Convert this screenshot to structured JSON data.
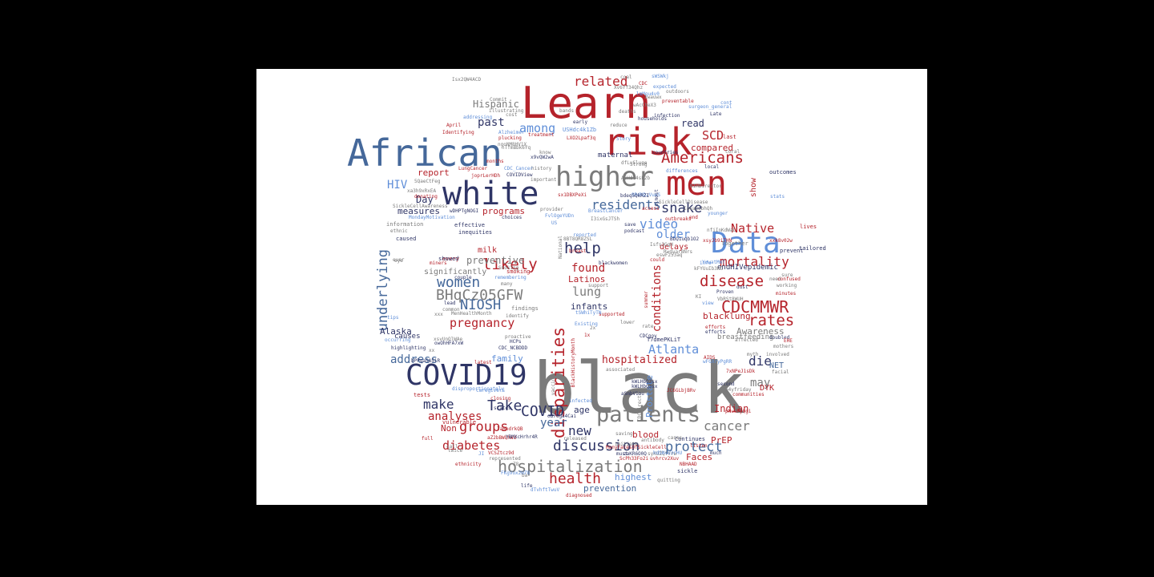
{
  "palette": {
    "background": "#000000",
    "canvas": "#ffffff",
    "red": "#b5232b",
    "steel_blue": "#45689a",
    "navy": "#2f3566",
    "light_blue": "#5f8ed8",
    "gray": "#7b7b7b"
  },
  "words": [
    {
      "text": "black",
      "color": "gray"
    },
    {
      "text": "Learn",
      "color": "red"
    },
    {
      "text": "African",
      "color": "steel_blue"
    },
    {
      "text": "risk",
      "color": "red"
    },
    {
      "text": "men",
      "color": "red"
    },
    {
      "text": "white",
      "color": "navy"
    },
    {
      "text": "higher",
      "color": "gray"
    },
    {
      "text": "COVID19",
      "color": "navy"
    },
    {
      "text": "Data",
      "color": "light_blue"
    },
    {
      "text": "patients",
      "color": "gray"
    },
    {
      "text": "hospitalization",
      "color": "gray"
    },
    {
      "text": "CDCMMWR",
      "color": "red"
    },
    {
      "text": "disparities",
      "color": "red"
    },
    {
      "text": "Americans",
      "color": "red"
    },
    {
      "text": "women",
      "color": "steel_blue"
    },
    {
      "text": "discussion",
      "color": "navy"
    },
    {
      "text": "disease",
      "color": "red"
    },
    {
      "text": "BHqCz05GFW",
      "color": "gray"
    },
    {
      "text": "mortality",
      "color": "red"
    },
    {
      "text": "rates",
      "color": "red"
    },
    {
      "text": "related",
      "color": "red"
    },
    {
      "text": "help",
      "color": "navy"
    },
    {
      "text": "protect",
      "color": "steel_blue"
    },
    {
      "text": "health",
      "color": "red"
    },
    {
      "text": "Atlanta",
      "color": "light_blue"
    },
    {
      "text": "likely",
      "color": "red"
    },
    {
      "text": "residents",
      "color": "steel_blue"
    },
    {
      "text": "pregnancy",
      "color": "red"
    },
    {
      "text": "groups",
      "color": "red"
    },
    {
      "text": "COVID",
      "color": "navy"
    },
    {
      "text": "snake",
      "color": "navy"
    },
    {
      "text": "cancer",
      "color": "gray"
    },
    {
      "text": "Native",
      "color": "red"
    },
    {
      "text": "NIOSH",
      "color": "steel_blue"
    },
    {
      "text": "underlying",
      "color": "steel_blue"
    },
    {
      "text": "conditions",
      "color": "red"
    },
    {
      "text": "Take",
      "color": "navy"
    },
    {
      "text": "make",
      "color": "navy"
    },
    {
      "text": "diabetes",
      "color": "red"
    },
    {
      "text": "new",
      "color": "navy"
    },
    {
      "text": "video",
      "color": "light_blue"
    },
    {
      "text": "die",
      "color": "navy"
    },
    {
      "text": "year",
      "color": "steel_blue"
    },
    {
      "text": "SCD",
      "color": "red"
    },
    {
      "text": "address",
      "color": "steel_blue"
    },
    {
      "text": "among",
      "color": "light_blue"
    },
    {
      "text": "HIV",
      "color": "light_blue"
    },
    {
      "text": "lung",
      "color": "gray"
    },
    {
      "text": "found",
      "color": "red"
    },
    {
      "text": "analyses",
      "color": "red"
    },
    {
      "text": "older",
      "color": "light_blue"
    },
    {
      "text": "past",
      "color": "navy"
    },
    {
      "text": "may",
      "color": "gray"
    },
    {
      "text": "Hispanic",
      "color": "gray"
    },
    {
      "text": "hospitalized",
      "color": "red"
    },
    {
      "text": "compared",
      "color": "red"
    },
    {
      "text": "read",
      "color": "navy"
    },
    {
      "text": "preventive",
      "color": "gray"
    },
    {
      "text": "report",
      "color": "red"
    },
    {
      "text": "measures",
      "color": "navy"
    },
    {
      "text": "Prostate",
      "color": "light_blue"
    },
    {
      "text": "highest",
      "color": "light_blue"
    },
    {
      "text": "prevention",
      "color": "steel_blue"
    },
    {
      "text": "programs",
      "color": "red"
    },
    {
      "text": "family",
      "color": "light_blue"
    },
    {
      "text": "Indian",
      "color": "red"
    },
    {
      "text": "Alaska",
      "color": "navy"
    },
    {
      "text": "blood",
      "color": "red"
    },
    {
      "text": "Awareness",
      "color": "gray"
    },
    {
      "text": "blacklung",
      "color": "red"
    },
    {
      "text": "breastfeeding",
      "color": "gray"
    },
    {
      "text": "endHIVepidemic",
      "color": "navy"
    },
    {
      "text": "show",
      "color": "red"
    },
    {
      "text": "Day",
      "color": "navy"
    },
    {
      "text": "age",
      "color": "navy"
    },
    {
      "text": "Latinos",
      "color": "red"
    },
    {
      "text": "infants",
      "color": "navy"
    },
    {
      "text": "significantly",
      "color": "gray"
    },
    {
      "text": "milk",
      "color": "red"
    },
    {
      "text": "delays",
      "color": "red"
    },
    {
      "text": "Faces",
      "color": "red"
    },
    {
      "text": "Non",
      "color": "red"
    },
    {
      "text": "PrEP",
      "color": "red"
    },
    {
      "text": "NET",
      "color": "steel_blue"
    },
    {
      "text": "DYK",
      "color": "red"
    },
    {
      "text": "maternal",
      "color": "navy"
    },
    {
      "text": "effective",
      "color": "navy"
    },
    {
      "text": "inequities",
      "color": "navy"
    },
    {
      "text": "every",
      "color": "red"
    },
    {
      "text": "showed",
      "color": "navy"
    },
    {
      "text": "smoking",
      "color": "red"
    },
    {
      "text": "findings",
      "color": "gray"
    },
    {
      "text": "tailored",
      "color": "navy"
    },
    {
      "text": "prevent",
      "color": "navy"
    },
    {
      "text": "outcomes",
      "color": "navy"
    },
    {
      "text": "Together",
      "color": "gray"
    },
    {
      "text": "information",
      "color": "gray"
    },
    {
      "text": "caused",
      "color": "navy"
    },
    {
      "text": "ethnic",
      "color": "gray"
    },
    {
      "text": "lives",
      "color": "red"
    },
    {
      "text": "vulnerable",
      "color": "red"
    },
    {
      "text": "tests",
      "color": "red"
    },
    {
      "text": "causes",
      "color": "navy"
    },
    {
      "text": "diagnosed",
      "color": "red"
    },
    {
      "text": "represented",
      "color": "gray"
    },
    {
      "text": "ethnicity",
      "color": "red"
    },
    {
      "text": "full",
      "color": "red"
    },
    {
      "text": "quitting",
      "color": "gray"
    },
    {
      "text": "sickle",
      "color": "navy"
    },
    {
      "text": "listen",
      "color": "red"
    },
    {
      "text": "NBHAAD",
      "color": "red"
    },
    {
      "text": "Continues",
      "color": "navy"
    },
    {
      "text": "communities",
      "color": "red"
    },
    {
      "text": "second",
      "color": "navy"
    },
    {
      "text": "facial",
      "color": "gray"
    },
    {
      "text": "involved",
      "color": "gray"
    },
    {
      "text": "mothers",
      "color": "gray"
    },
    {
      "text": "doubled",
      "color": "navy"
    },
    {
      "text": "affected",
      "color": "gray"
    },
    {
      "text": "efforts",
      "color": "red"
    },
    {
      "text": "Proven",
      "color": "navy"
    },
    {
      "text": "working",
      "color": "gray"
    },
    {
      "text": "minutes",
      "color": "red"
    },
    {
      "text": "April",
      "color": "red"
    },
    {
      "text": "Identifying",
      "color": "red"
    },
    {
      "text": "treatment",
      "color": "red"
    },
    {
      "text": "Alzheimer",
      "color": "light_blue"
    },
    {
      "text": "early",
      "color": "navy"
    },
    {
      "text": "deaths",
      "color": "gray"
    },
    {
      "text": "reduce",
      "color": "gray"
    },
    {
      "text": "infection",
      "color": "navy"
    },
    {
      "text": "preventable",
      "color": "red"
    },
    {
      "text": "last",
      "color": "red"
    },
    {
      "text": "local",
      "color": "navy"
    },
    {
      "text": "countries",
      "color": "navy"
    },
    {
      "text": "differences",
      "color": "light_blue"
    },
    {
      "text": "Late",
      "color": "navy"
    },
    {
      "text": "coral",
      "color": "gray"
    },
    {
      "text": "history",
      "color": "gray"
    },
    {
      "text": "important",
      "color": "gray"
    },
    {
      "text": "LungCancer",
      "color": "red"
    },
    {
      "text": "BreastCancer",
      "color": "light_blue"
    },
    {
      "text": "outbreaks",
      "color": "red"
    },
    {
      "text": "Existing",
      "color": "light_blue"
    },
    {
      "text": "infected",
      "color": "light_blue"
    },
    {
      "text": "associated",
      "color": "gray"
    },
    {
      "text": "released",
      "color": "gray"
    },
    {
      "text": "must",
      "color": "navy"
    },
    {
      "text": "initiate",
      "color": "gray"
    },
    {
      "text": "saving",
      "color": "gray"
    },
    {
      "text": "could",
      "color": "red"
    },
    {
      "text": "much",
      "color": "navy"
    },
    {
      "text": "AIDS",
      "color": "red"
    },
    {
      "text": "need",
      "color": "gray"
    },
    {
      "text": "lead",
      "color": "navy"
    },
    {
      "text": "common",
      "color": "gray"
    },
    {
      "text": "identify",
      "color": "gray"
    },
    {
      "text": "many",
      "color": "gray"
    },
    {
      "text": "couple",
      "color": "navy"
    },
    {
      "text": "remembering",
      "color": "light_blue"
    },
    {
      "text": "donating",
      "color": "red"
    },
    {
      "text": "addressing",
      "color": "light_blue"
    },
    {
      "text": "cost",
      "color": "gray"
    },
    {
      "text": "plucking",
      "color": "red"
    },
    {
      "text": "MondayMotivation",
      "color": "light_blue"
    },
    {
      "text": "SickleCellAwareness",
      "color": "gray"
    },
    {
      "text": "highlighting",
      "color": "navy"
    },
    {
      "text": "proactive",
      "color": "gray"
    },
    {
      "text": "CDC_NCBDDD",
      "color": "navy"
    },
    {
      "text": "latest",
      "color": "red"
    },
    {
      "text": "disproportionately",
      "color": "light_blue"
    },
    {
      "text": "caregivers",
      "color": "light_blue"
    },
    {
      "text": "states",
      "color": "navy"
    },
    {
      "text": "life",
      "color": "navy"
    },
    {
      "text": "call",
      "color": "gray"
    },
    {
      "text": "supported",
      "color": "red"
    },
    {
      "text": "reported",
      "color": "light_blue"
    },
    {
      "text": "National",
      "color": "gray"
    },
    {
      "text": "Story",
      "color": "light_blue"
    },
    {
      "text": "younger",
      "color": "light_blue"
    },
    {
      "text": "stats",
      "color": "light_blue"
    },
    {
      "text": "cont",
      "color": "light_blue"
    },
    {
      "text": "outdoors",
      "color": "gray"
    },
    {
      "text": "expected",
      "color": "light_blue"
    },
    {
      "text": "surgeon_general",
      "color": "light_blue"
    },
    {
      "text": "coal",
      "color": "gray"
    },
    {
      "text": "CDC",
      "color": "red"
    },
    {
      "text": "households",
      "color": "navy"
    },
    {
      "text": "Commit",
      "color": "gray"
    },
    {
      "text": "illustrating",
      "color": "gray"
    },
    {
      "text": "MenHealthMonth",
      "color": "gray"
    },
    {
      "text": "BlackHistoryMonth",
      "color": "red"
    },
    {
      "text": "blackwomen",
      "color": "navy"
    },
    {
      "text": "provider",
      "color": "gray"
    },
    {
      "text": "choices",
      "color": "navy"
    },
    {
      "text": "CDC_Cancer",
      "color": "light_blue"
    },
    {
      "text": "COVIDView",
      "color": "navy"
    },
    {
      "text": "ManyFacesOfSickleCell",
      "color": "red"
    },
    {
      "text": "CDCDirector",
      "color": "gray"
    },
    {
      "text": "Smoking",
      "color": "gray"
    },
    {
      "text": "miners",
      "color": "red"
    },
    {
      "text": "vaccine",
      "color": "gray"
    },
    {
      "text": "xx",
      "color": "gray"
    },
    {
      "text": "xxx",
      "color": "gray"
    },
    {
      "text": "eye",
      "color": "gray"
    },
    {
      "text": "USHdc4k1Zb",
      "color": "light_blue"
    },
    {
      "text": "LXO2Lpaf3q",
      "color": "red"
    },
    {
      "text": "sx1DBXPeXi",
      "color": "red"
    },
    {
      "text": "9RdNDzVueS",
      "color": "light_blue"
    },
    {
      "text": "FvlOgeYUDn",
      "color": "light_blue"
    },
    {
      "text": "wDHPTgNOGI",
      "color": "navy"
    },
    {
      "text": "5QaeCtFeg",
      "color": "gray"
    },
    {
      "text": "xa3h9xRxEA",
      "color": "gray"
    },
    {
      "text": "aZ2bBWQhWd",
      "color": "red"
    },
    {
      "text": "laRbdrkQB",
      "color": "red"
    },
    {
      "text": "VCSZtcz9d",
      "color": "red"
    },
    {
      "text": "FKgVox2WZ8",
      "color": "light_blue"
    },
    {
      "text": "dTvhftTwuV",
      "color": "light_blue"
    },
    {
      "text": "T7dmePKLiT",
      "color": "navy"
    },
    {
      "text": "tSWhiTyTN",
      "color": "light_blue"
    },
    {
      "text": "7xNPeJ1sDk",
      "color": "red"
    },
    {
      "text": "JC6GLbjBRv",
      "color": "red"
    },
    {
      "text": "wFGXryPgRR",
      "color": "light_blue"
    },
    {
      "text": "xsvUnOlWAe",
      "color": "gray"
    },
    {
      "text": "ngoNM8HV1X",
      "color": "gray"
    },
    {
      "text": "8BT8QR8ZSL",
      "color": "gray"
    },
    {
      "text": "nTfmBbk6Yq",
      "color": "gray"
    },
    {
      "text": "Xv6Yf34Qhz",
      "color": "gray"
    },
    {
      "text": "sWSWkj",
      "color": "light_blue"
    },
    {
      "text": "lmMgu4v0",
      "color": "light_blue"
    },
    {
      "text": "wAcCheX3",
      "color": "gray"
    },
    {
      "text": "Iwauwx",
      "color": "gray"
    },
    {
      "text": "dfLuSluqe",
      "color": "gray"
    },
    {
      "text": "x9vQW2wA",
      "color": "navy"
    },
    {
      "text": "Isx2QW4ACD",
      "color": "gray"
    },
    {
      "text": "bPPqaSA5iR",
      "color": "navy"
    },
    {
      "text": "owOhHFA7xW",
      "color": "navy"
    },
    {
      "text": "YBMXcHrhr4R",
      "color": "navy"
    },
    {
      "text": "oB7Gga4Cai",
      "color": "navy"
    },
    {
      "text": "aSmbV1ou",
      "color": "navy"
    },
    {
      "text": "kWLHbQ3sx",
      "color": "navy"
    },
    {
      "text": "zaKR6O0Q",
      "color": "navy"
    },
    {
      "text": "syKUZQfYrw",
      "color": "gray"
    },
    {
      "text": "uvhrcv2Xuv",
      "color": "red"
    },
    {
      "text": "hdSNvU3rHU",
      "color": "light_blue"
    },
    {
      "text": "xsyJb9iTHN",
      "color": "red"
    },
    {
      "text": "kFYUuIb3KC",
      "color": "gray"
    },
    {
      "text": "BbQ1uqb1O2",
      "color": "navy"
    },
    {
      "text": "Isfs3GqH",
      "color": "gray"
    },
    {
      "text": "Rwdyar8Nrs",
      "color": "gray"
    },
    {
      "text": "YuwatMmT",
      "color": "light_blue"
    },
    {
      "text": "nfiInKdWaL",
      "color": "gray"
    },
    {
      "text": "xxk8v02w",
      "color": "red"
    },
    {
      "text": "joprLerHDh",
      "color": "red"
    },
    {
      "text": "I3ixGsJTSh",
      "color": "gray"
    },
    {
      "text": "eswFz53aq",
      "color": "gray"
    },
    {
      "text": "bdeq5QkRZI",
      "color": "navy"
    },
    {
      "text": "p4yfriday",
      "color": "gray"
    },
    {
      "text": "IavaCobhQh",
      "color": "gray"
    },
    {
      "text": "pNuUPyQgi",
      "color": "red"
    },
    {
      "text": "VbRSt8WUH",
      "color": "gray"
    },
    {
      "text": "ScPh33Fo2i",
      "color": "red"
    },
    {
      "text": "SickleCellDisease",
      "color": "gray"
    },
    {
      "text": "EHE",
      "color": "red"
    },
    {
      "text": "confused",
      "color": "red"
    },
    {
      "text": "sure",
      "color": "gray"
    },
    {
      "text": "myth",
      "color": "gray"
    },
    {
      "text": "view",
      "color": "light_blue"
    },
    {
      "text": "info",
      "color": "light_blue"
    },
    {
      "text": "support",
      "color": "gray"
    },
    {
      "text": "tips",
      "color": "light_blue"
    },
    {
      "text": "occurring",
      "color": "light_blue"
    },
    {
      "text": "ever",
      "color": "gray"
    },
    {
      "text": "dust",
      "color": "navy"
    },
    {
      "text": "CDCgov",
      "color": "navy"
    },
    {
      "text": "ASHdc4sL2b",
      "color": "gray"
    },
    {
      "text": "NIHDirector",
      "color": "gray"
    },
    {
      "text": "months",
      "color": "red"
    },
    {
      "text": "bands",
      "color": "gray"
    },
    {
      "text": "save",
      "color": "navy"
    },
    {
      "text": "podcast",
      "color": "navy"
    },
    {
      "text": "access",
      "color": "red"
    },
    {
      "text": "almost",
      "color": "navy"
    },
    {
      "text": "Strong",
      "color": "gray"
    },
    {
      "text": "summer",
      "color": "red"
    },
    {
      "text": "know",
      "color": "gray"
    },
    {
      "text": "rate",
      "color": "gray"
    },
    {
      "text": "end",
      "color": "red"
    },
    {
      "text": "HCPs",
      "color": "navy"
    },
    {
      "text": "kWLHbQ3sx",
      "color": "navy"
    },
    {
      "text": "cases",
      "color": "gray"
    },
    {
      "text": "antibody",
      "color": "gray"
    },
    {
      "text": "closing",
      "color": "red"
    },
    {
      "text": "efforts",
      "color": "navy"
    },
    {
      "text": "lower",
      "color": "gray"
    },
    {
      "text": "1x",
      "color": "red"
    },
    {
      "text": "2x",
      "color": "gray"
    },
    {
      "text": "breast",
      "color": "red"
    },
    {
      "text": "twice",
      "color": "gray"
    },
    {
      "text": "Z8",
      "color": "gray"
    },
    {
      "text": "ba",
      "color": "gray"
    },
    {
      "text": "KI",
      "color": "gray"
    },
    {
      "text": "US",
      "color": "light_blue"
    },
    {
      "text": "JI",
      "color": "light_blue"
    }
  ]
}
